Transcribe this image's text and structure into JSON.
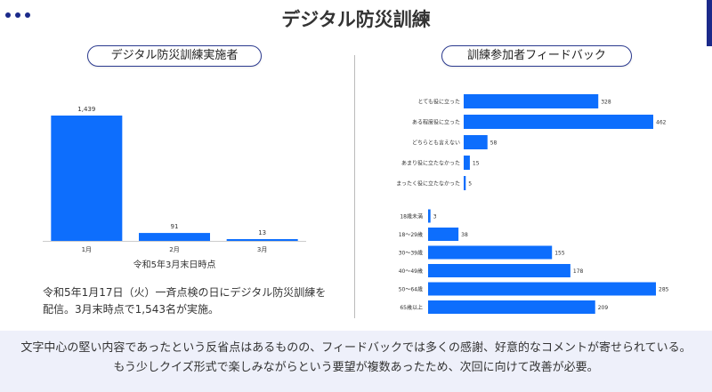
{
  "header": {
    "title": "デジタル防災訓練"
  },
  "left_panel": {
    "heading": "デジタル防災訓練実施者",
    "note_line1": "令和5年1月17日（火）一斉点検の日にデジタル防災訓練を",
    "note_line2": "配信。3月末時点で1,543名が実施。"
  },
  "right_panel": {
    "heading": "訓練参加者フィードバック"
  },
  "footer": {
    "line1": "文字中心の堅い内容であったという反省点はあるものの、フィードバックでは多くの感謝、好意的なコメントが寄せられている。",
    "line2": "もう少しクイズ形式で楽しみながらという要望が複数あったため、次回に向けて改善が必要。"
  },
  "chart_data": [
    {
      "type": "bar",
      "categories": [
        "1月",
        "2月",
        "3月"
      ],
      "values": [
        1439,
        91,
        13
      ],
      "value_labels": [
        "1,439",
        "91",
        "13"
      ],
      "xlabel": "令和5年3月末日時点",
      "color": "#0d6efd"
    },
    {
      "type": "bar",
      "orientation": "horizontal",
      "categories": [
        "とても役に立った",
        "ある程度役に立った",
        "どちらとも言えない",
        "あまり役に立たなかった",
        "まったく役に立たなかった"
      ],
      "values": [
        328,
        462,
        58,
        15,
        5
      ],
      "color": "#0d6efd"
    },
    {
      "type": "bar",
      "orientation": "horizontal",
      "categories": [
        "18歳未満",
        "18〜29歳",
        "30〜39歳",
        "40〜49歳",
        "50〜64歳",
        "65歳以上"
      ],
      "values": [
        3,
        38,
        155,
        178,
        285,
        209
      ],
      "color": "#0d6efd"
    }
  ]
}
